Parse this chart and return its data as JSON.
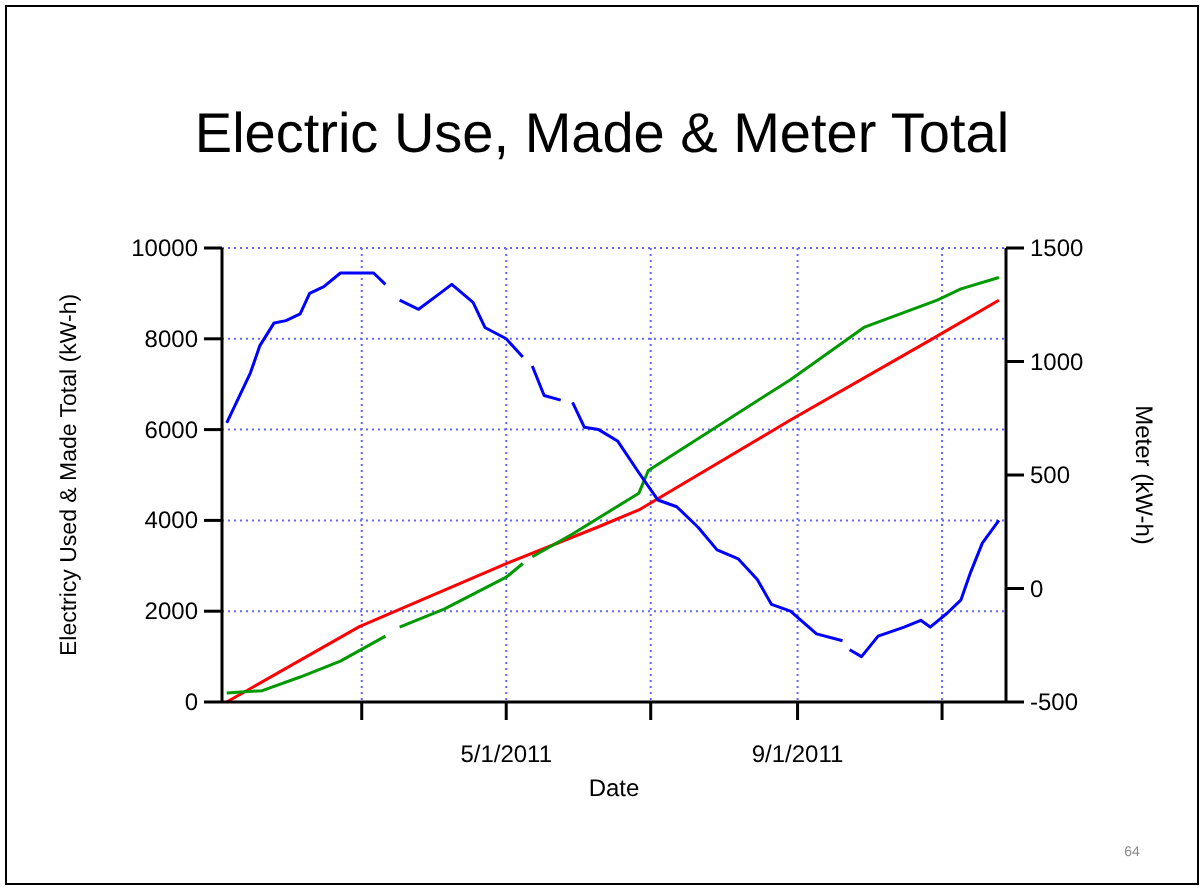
{
  "chart_data": {
    "type": "line",
    "title": "Electric Use, Made & Meter Total",
    "xlabel": "Date",
    "ylabel": "Electricy Used & Made Total (kW-h)",
    "y2label": "Meter (kW-h)",
    "xlim": [
      "2011-01-01",
      "2011-11-28"
    ],
    "xticks": [
      {
        "value": "2011-03-01",
        "label": null
      },
      {
        "value": "2011-05-01",
        "label": "5/1/2011"
      },
      {
        "value": "2011-07-01",
        "label": null
      },
      {
        "value": "2011-09-01",
        "label": "9/1/2011"
      },
      {
        "value": "2011-11-01",
        "label": null
      }
    ],
    "ylim": [
      0,
      10000
    ],
    "yticks": [
      0,
      2000,
      4000,
      6000,
      8000,
      10000
    ],
    "y2lim": [
      -500,
      1500
    ],
    "y2ticks": [
      -500,
      0,
      500,
      1000,
      1500
    ],
    "grid": true,
    "annotations": [
      "64"
    ],
    "series": [
      {
        "color": "#ff0000",
        "x": [
          "2011-01-03",
          "2011-02-28",
          "2011-05-01",
          "2011-06-09",
          "2011-06-26",
          "2011-08-29",
          "2011-10-27",
          "2011-11-25"
        ],
        "values": [
          0,
          1660,
          3050,
          3860,
          4230,
          6210,
          7970,
          8850
        ]
      },
      {
        "color": "#009900",
        "x": [
          "2011-01-03",
          "2011-01-18",
          "2011-02-03",
          "2011-02-20",
          "2011-03-11",
          "2011-03-14",
          "2011-03-17",
          "2011-04-05",
          "2011-05-01",
          "2011-05-08",
          "2011-05-10",
          "2011-05-12",
          "2011-05-29",
          "2011-06-26",
          "2011-06-30",
          "2011-08-29",
          "2011-09-29",
          "2011-10-30",
          "2011-11-09",
          "2011-11-25"
        ],
        "values": [
          200,
          250,
          550,
          900,
          1450,
          null,
          1650,
          2050,
          2750,
          3050,
          null,
          3200,
          3700,
          4600,
          5100,
          7100,
          8250,
          8850,
          9100,
          9350
        ]
      },
      {
        "color": "#0000ff",
        "axis": "y2",
        "x": [
          "2011-01-03",
          "2011-01-13",
          "2011-01-17",
          "2011-01-23",
          "2011-01-28",
          "2011-02-03",
          "2011-02-07",
          "2011-02-13",
          "2011-02-20",
          "2011-03-06",
          "2011-03-11",
          "2011-03-14",
          "2011-03-17",
          "2011-03-25",
          "2011-04-03",
          "2011-04-08",
          "2011-04-17",
          "2011-04-22",
          "2011-05-01",
          "2011-05-08",
          "2011-05-10",
          "2011-05-12",
          "2011-05-17",
          "2011-05-24",
          "2011-05-26",
          "2011-05-29",
          "2011-06-03",
          "2011-06-09",
          "2011-06-17",
          "2011-06-26",
          "2011-07-04",
          "2011-07-12",
          "2011-07-21",
          "2011-07-29",
          "2011-08-07",
          "2011-08-15",
          "2011-08-21",
          "2011-08-29",
          "2011-09-09",
          "2011-09-20",
          "2011-09-21",
          "2011-09-23",
          "2011-09-28",
          "2011-10-05",
          "2011-10-16",
          "2011-10-23",
          "2011-10-27",
          "2011-11-03",
          "2011-11-09",
          "2011-11-13",
          "2011-11-18",
          "2011-11-25"
        ],
        "values": [
          730,
          950,
          1070,
          1170,
          1180,
          1210,
          1300,
          1330,
          1390,
          1390,
          1340,
          null,
          1270,
          1230,
          1300,
          1340,
          1260,
          1150,
          1100,
          1020,
          null,
          980,
          850,
          830,
          null,
          820,
          710,
          700,
          650,
          510,
          390,
          360,
          270,
          170,
          130,
          40,
          -70,
          -100,
          -200,
          -230,
          null,
          -270,
          -300,
          -210,
          -170,
          -140,
          -170,
          -110,
          -50,
          70,
          200,
          300
        ]
      }
    ]
  }
}
